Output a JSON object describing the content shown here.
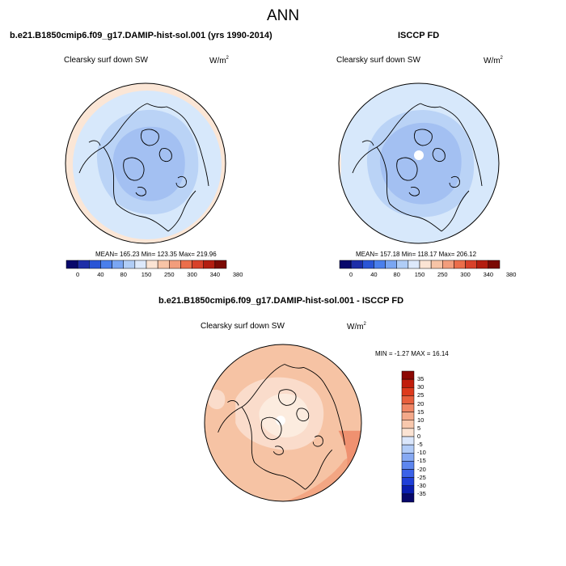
{
  "title": "ANN",
  "panels": [
    {
      "title": "b.e21.B1850cmip6.f09_g17.DAMIP-hist-sol.001 (yrs 1990-2014)",
      "variable": "Clearsky surf down SW",
      "units": "W/m",
      "units_exp": "2",
      "stats": "MEAN= 165.23  Min= 123.35  Max= 219.96"
    },
    {
      "title": "ISCCP FD",
      "variable": "Clearsky surf down SW",
      "units": "W/m",
      "units_exp": "2",
      "stats": "MEAN= 157.18  Min= 118.17  Max= 206.12"
    },
    {
      "title": "b.e21.B1850cmip6.f09_g17.DAMIP-hist-sol.001 - ISCCP FD",
      "variable": "Clearsky surf down SW",
      "units": "W/m",
      "units_exp": "2",
      "stats": "MIN = -1.27 MAX = 16.14"
    }
  ],
  "colorbar_abs": {
    "colors": [
      "#08086b",
      "#1e2ea8",
      "#2a55d6",
      "#4a7fec",
      "#7aa6f2",
      "#b0cdf6",
      "#dde9fb",
      "#fbe4d4",
      "#f7c4a6",
      "#f29d7c",
      "#eb6e4b",
      "#d8412a",
      "#b31d10",
      "#7b0a04"
    ],
    "tick_labels": [
      "0",
      "40",
      "80",
      "150",
      "250",
      "300",
      "340",
      "380"
    ]
  },
  "colorbar_diff": {
    "colors": [
      "#08086b",
      "#0a1db0",
      "#1f3fd8",
      "#3b62e8",
      "#5d86ef",
      "#86a9f3",
      "#b1cbf7",
      "#dae6fb",
      "#fbe3d3",
      "#f8c8ad",
      "#f4a98a",
      "#f08665",
      "#e85f3d",
      "#dd3a1d",
      "#c11d0c",
      "#8c0804"
    ],
    "tick_labels": [
      "35",
      "30",
      "25",
      "20",
      "15",
      "10",
      "5",
      "0",
      "-5",
      "-10",
      "-15",
      "-20",
      "-25",
      "-30",
      "-35"
    ]
  },
  "map_colors": {
    "abs_light": "#d7e8fb",
    "abs_mid": "#bad3f6",
    "abs_dark": "#a3c0f2",
    "abs_warm": "#fbe6d6",
    "diff_base": "#f6c3a4",
    "diff_light": "#fadccb",
    "diff_pale": "#fcecdf",
    "diff_strong": "#f3a683",
    "diff_hot": "#ef9170",
    "missing": "#ffffff"
  }
}
